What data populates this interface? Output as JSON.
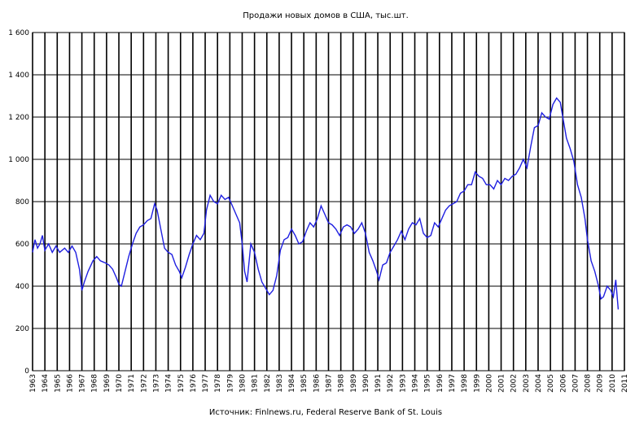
{
  "chart_data": {
    "type": "line",
    "title": "Продажи новых домов в США, тыс.шт.",
    "source": "Источник: Finlnews.ru, Federal Reserve Bank of St. Louis",
    "xlabel": "",
    "ylabel": "",
    "xlim": [
      1963,
      2011
    ],
    "ylim": [
      0,
      1600
    ],
    "yticks": [
      0,
      200,
      400,
      600,
      800,
      1000,
      1200,
      1400,
      1600
    ],
    "ytick_labels": [
      "0",
      "200",
      "400",
      "600",
      "800",
      "1 000",
      "1 200",
      "1 400",
      "1 600"
    ],
    "xticks": [
      "1963",
      "1964",
      "1965",
      "1966",
      "1967",
      "1968",
      "1969",
      "1970",
      "1971",
      "1972",
      "1973",
      "1974",
      "1975",
      "1976",
      "1977",
      "1978",
      "1979",
      "1980",
      "1981",
      "1982",
      "1983",
      "1984",
      "1985",
      "1986",
      "1987",
      "1988",
      "1989",
      "1990",
      "1991",
      "1992",
      "1993",
      "1994",
      "1995",
      "1996",
      "1997",
      "1998",
      "1999",
      "2000",
      "2001",
      "2002",
      "2003",
      "2004",
      "2005",
      "2006",
      "2007",
      "2008",
      "2009",
      "2010",
      "2011"
    ],
    "grid": true,
    "line_color": "#1f1fe0",
    "series": [
      {
        "values": [
          [
            1963.0,
            560
          ],
          [
            1963.2,
            620
          ],
          [
            1963.4,
            580
          ],
          [
            1963.6,
            600
          ],
          [
            1963.8,
            640
          ],
          [
            1964.0,
            570
          ],
          [
            1964.3,
            600
          ],
          [
            1964.6,
            560
          ],
          [
            1964.9,
            590
          ],
          [
            1965.2,
            560
          ],
          [
            1965.6,
            580
          ],
          [
            1965.9,
            560
          ],
          [
            1966.2,
            590
          ],
          [
            1966.5,
            560
          ],
          [
            1966.8,
            480
          ],
          [
            1967.0,
            380
          ],
          [
            1967.2,
            420
          ],
          [
            1967.5,
            470
          ],
          [
            1967.9,
            520
          ],
          [
            1968.2,
            540
          ],
          [
            1968.5,
            520
          ],
          [
            1968.9,
            510
          ],
          [
            1969.2,
            500
          ],
          [
            1969.5,
            480
          ],
          [
            1969.8,
            440
          ],
          [
            1970.0,
            410
          ],
          [
            1970.2,
            400
          ],
          [
            1970.5,
            470
          ],
          [
            1970.8,
            540
          ],
          [
            1971.1,
            600
          ],
          [
            1971.4,
            650
          ],
          [
            1971.7,
            680
          ],
          [
            1972.0,
            690
          ],
          [
            1972.3,
            710
          ],
          [
            1972.6,
            720
          ],
          [
            1972.9,
            790
          ],
          [
            1973.1,
            760
          ],
          [
            1973.4,
            670
          ],
          [
            1973.7,
            580
          ],
          [
            1974.0,
            560
          ],
          [
            1974.3,
            550
          ],
          [
            1974.6,
            500
          ],
          [
            1974.9,
            470
          ],
          [
            1975.1,
            440
          ],
          [
            1975.4,
            490
          ],
          [
            1975.7,
            550
          ],
          [
            1976.0,
            600
          ],
          [
            1976.3,
            640
          ],
          [
            1976.6,
            620
          ],
          [
            1976.9,
            650
          ],
          [
            1977.1,
            760
          ],
          [
            1977.4,
            830
          ],
          [
            1977.7,
            800
          ],
          [
            1978.0,
            790
          ],
          [
            1978.3,
            830
          ],
          [
            1978.6,
            810
          ],
          [
            1978.9,
            820
          ],
          [
            1979.2,
            780
          ],
          [
            1979.5,
            740
          ],
          [
            1979.8,
            700
          ],
          [
            1980.0,
            600
          ],
          [
            1980.2,
            470
          ],
          [
            1980.4,
            420
          ],
          [
            1980.7,
            600
          ],
          [
            1981.0,
            560
          ],
          [
            1981.3,
            480
          ],
          [
            1981.6,
            420
          ],
          [
            1981.9,
            390
          ],
          [
            1982.2,
            360
          ],
          [
            1982.5,
            380
          ],
          [
            1982.8,
            450
          ],
          [
            1983.1,
            570
          ],
          [
            1983.4,
            620
          ],
          [
            1983.7,
            630
          ],
          [
            1984.0,
            670
          ],
          [
            1984.3,
            640
          ],
          [
            1984.6,
            600
          ],
          [
            1984.9,
            610
          ],
          [
            1985.2,
            660
          ],
          [
            1985.5,
            700
          ],
          [
            1985.8,
            680
          ],
          [
            1986.1,
            720
          ],
          [
            1986.4,
            780
          ],
          [
            1986.7,
            740
          ],
          [
            1987.0,
            700
          ],
          [
            1987.3,
            690
          ],
          [
            1987.6,
            670
          ],
          [
            1987.9,
            640
          ],
          [
            1988.2,
            680
          ],
          [
            1988.5,
            690
          ],
          [
            1988.8,
            680
          ],
          [
            1989.1,
            650
          ],
          [
            1989.4,
            670
          ],
          [
            1989.7,
            700
          ],
          [
            1990.0,
            650
          ],
          [
            1990.3,
            560
          ],
          [
            1990.6,
            520
          ],
          [
            1990.9,
            470
          ],
          [
            1991.1,
            430
          ],
          [
            1991.4,
            500
          ],
          [
            1991.7,
            510
          ],
          [
            1992.0,
            560
          ],
          [
            1992.3,
            590
          ],
          [
            1992.6,
            620
          ],
          [
            1992.9,
            660
          ],
          [
            1993.2,
            620
          ],
          [
            1993.5,
            670
          ],
          [
            1993.8,
            700
          ],
          [
            1994.1,
            690
          ],
          [
            1994.4,
            720
          ],
          [
            1994.7,
            650
          ],
          [
            1995.0,
            630
          ],
          [
            1995.3,
            640
          ],
          [
            1995.6,
            700
          ],
          [
            1995.9,
            680
          ],
          [
            1996.2,
            720
          ],
          [
            1996.5,
            760
          ],
          [
            1996.8,
            780
          ],
          [
            1997.1,
            790
          ],
          [
            1997.4,
            800
          ],
          [
            1997.7,
            840
          ],
          [
            1998.0,
            850
          ],
          [
            1998.3,
            880
          ],
          [
            1998.6,
            880
          ],
          [
            1998.9,
            940
          ],
          [
            1999.2,
            920
          ],
          [
            1999.5,
            910
          ],
          [
            1999.8,
            880
          ],
          [
            2000.1,
            880
          ],
          [
            2000.4,
            860
          ],
          [
            2000.7,
            900
          ],
          [
            2001.0,
            880
          ],
          [
            2001.3,
            910
          ],
          [
            2001.6,
            900
          ],
          [
            2001.9,
            920
          ],
          [
            2002.2,
            930
          ],
          [
            2002.5,
            960
          ],
          [
            2002.8,
            1000
          ],
          [
            2003.1,
            960
          ],
          [
            2003.4,
            1060
          ],
          [
            2003.7,
            1150
          ],
          [
            2004.0,
            1160
          ],
          [
            2004.3,
            1220
          ],
          [
            2004.6,
            1200
          ],
          [
            2004.9,
            1190
          ],
          [
            2005.2,
            1260
          ],
          [
            2005.5,
            1290
          ],
          [
            2005.8,
            1270
          ],
          [
            2006.0,
            1200
          ],
          [
            2006.3,
            1100
          ],
          [
            2006.6,
            1050
          ],
          [
            2006.9,
            990
          ],
          [
            2007.2,
            880
          ],
          [
            2007.5,
            820
          ],
          [
            2007.8,
            720
          ],
          [
            2008.0,
            620
          ],
          [
            2008.3,
            520
          ],
          [
            2008.6,
            470
          ],
          [
            2008.9,
            400
          ],
          [
            2009.1,
            340
          ],
          [
            2009.3,
            350
          ],
          [
            2009.6,
            400
          ],
          [
            2009.9,
            380
          ],
          [
            2010.1,
            350
          ],
          [
            2010.3,
            430
          ],
          [
            2010.5,
            290
          ]
        ]
      }
    ]
  }
}
